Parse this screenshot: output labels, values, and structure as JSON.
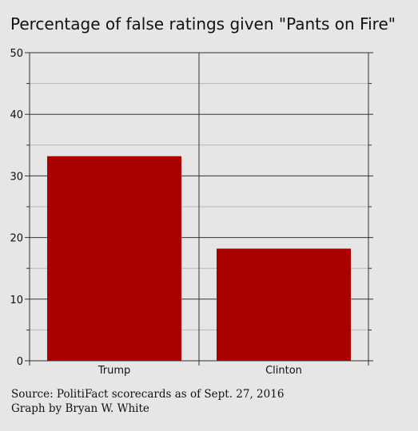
{
  "chart_data": {
    "type": "bar",
    "title": "Percentage of false ratings given \"Pants on Fire\"",
    "categories": [
      "Trump",
      "Clinton"
    ],
    "values": [
      33.2,
      18.2
    ],
    "xlabel": "",
    "ylabel": "",
    "ylim": [
      0,
      50
    ],
    "yticks": [
      0,
      10,
      20,
      30,
      40,
      50
    ],
    "grid": true,
    "bar_color": "#aa0000"
  },
  "footer": {
    "source": "Source: PolitiFact scorecards as of Sept. 27, 2016",
    "credit": "Graph by Bryan W. White"
  }
}
